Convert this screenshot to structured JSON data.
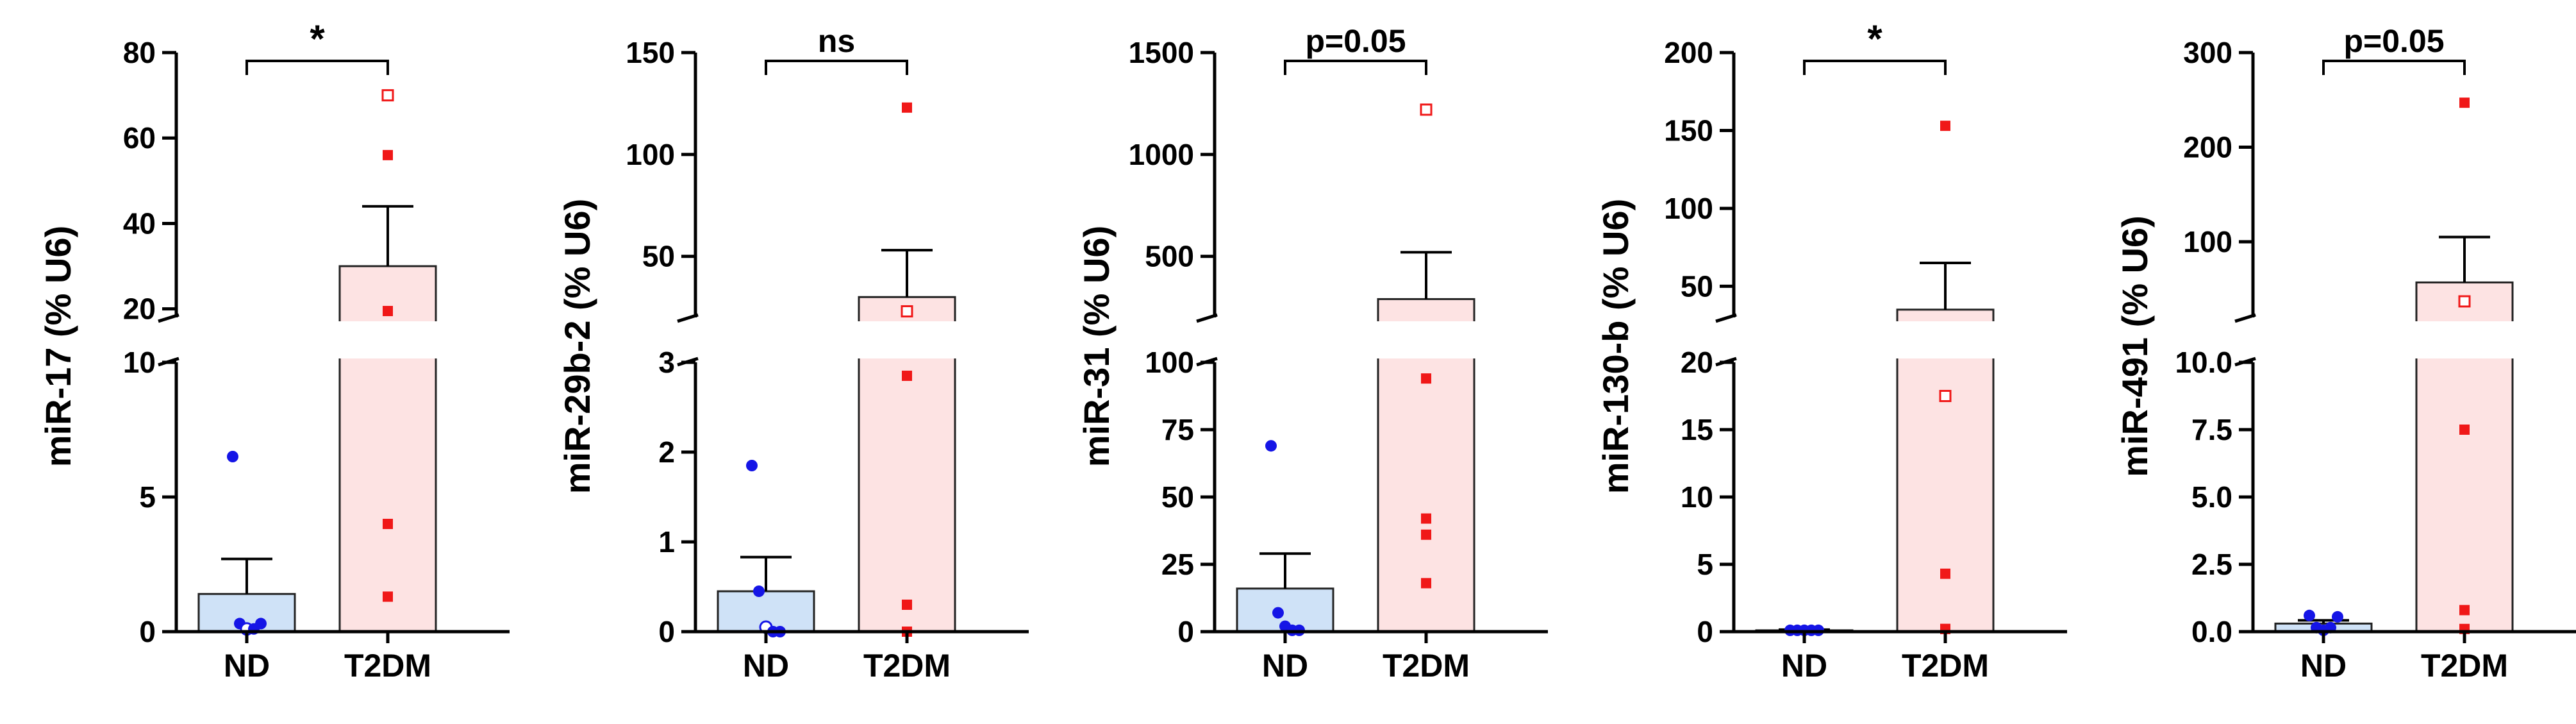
{
  "colors": {
    "nd_bar_fill": "#cfe2f7",
    "nd_point": "#1515e6",
    "t2dm_bar_fill": "#fde3e3",
    "t2dm_point": "#f01818",
    "axis": "#000000"
  },
  "chart_data": [
    {
      "type": "bar",
      "title": "",
      "ylabel": "miR-17 (% U6)",
      "categories": [
        "ND",
        "T2DM"
      ],
      "significance": "*",
      "y_axis_break": {
        "lower": {
          "ylim": [
            0,
            10
          ],
          "ticks": [
            0,
            5,
            10
          ],
          "tick_labels": [
            "0",
            "5",
            "10"
          ]
        },
        "upper": {
          "ylim": [
            18,
            80
          ],
          "ticks": [
            20,
            40,
            60,
            80
          ],
          "tick_labels": [
            "20",
            "40",
            "60",
            "80"
          ]
        }
      },
      "series": [
        {
          "name": "ND",
          "mean": 1.4,
          "sem": 1.3,
          "points": [
            {
              "value": 6.5,
              "open": false
            },
            {
              "value": 0.3,
              "open": false
            },
            {
              "value": 0.1,
              "open": true
            },
            {
              "value": 0.1,
              "open": false
            },
            {
              "value": 0.3,
              "open": false
            }
          ]
        },
        {
          "name": "T2DM",
          "mean": 30,
          "sem": 14,
          "points": [
            {
              "value": 70,
              "open": true
            },
            {
              "value": 56,
              "open": false
            },
            {
              "value": 19.5,
              "open": false
            },
            {
              "value": 4,
              "open": false
            },
            {
              "value": 1.3,
              "open": false
            }
          ]
        }
      ]
    },
    {
      "type": "bar",
      "title": "",
      "ylabel": "miR-29b-2 (% U6)",
      "categories": [
        "ND",
        "T2DM"
      ],
      "significance": "ns",
      "y_axis_break": {
        "lower": {
          "ylim": [
            0,
            3
          ],
          "ticks": [
            0,
            1,
            2,
            3
          ],
          "tick_labels": [
            "0",
            "1",
            "2",
            "3"
          ]
        },
        "upper": {
          "ylim": [
            20,
            150
          ],
          "ticks": [
            50,
            100,
            150
          ],
          "tick_labels": [
            "50",
            "100",
            "150"
          ]
        }
      },
      "series": [
        {
          "name": "ND",
          "mean": 0.45,
          "sem": 0.38,
          "points": [
            {
              "value": 1.85,
              "open": false
            },
            {
              "value": 0.45,
              "open": false
            },
            {
              "value": 0.05,
              "open": true
            },
            {
              "value": 0.0,
              "open": false
            },
            {
              "value": 0.0,
              "open": false
            }
          ]
        },
        {
          "name": "T2DM",
          "mean": 30,
          "sem": 23,
          "points": [
            {
              "value": 123,
              "open": false
            },
            {
              "value": 23,
              "open": true
            },
            {
              "value": 2.85,
              "open": false
            },
            {
              "value": 0.3,
              "open": false
            },
            {
              "value": 0.0,
              "open": false
            }
          ]
        }
      ]
    },
    {
      "type": "bar",
      "title": "",
      "ylabel": "miR-31 (% U6)",
      "categories": [
        "ND",
        "T2DM"
      ],
      "significance": "p=0.05",
      "y_axis_break": {
        "lower": {
          "ylim": [
            0,
            100
          ],
          "ticks": [
            0,
            25,
            50,
            75,
            100
          ],
          "tick_labels": [
            "0",
            "25",
            "50",
            "75",
            "100"
          ]
        },
        "upper": {
          "ylim": [
            200,
            1500
          ],
          "ticks": [
            500,
            1000,
            1500
          ],
          "tick_labels": [
            "500",
            "1000",
            "1500"
          ]
        }
      },
      "series": [
        {
          "name": "ND",
          "mean": 16,
          "sem": 13,
          "points": [
            {
              "value": 69,
              "open": false
            },
            {
              "value": 7,
              "open": false
            },
            {
              "value": 2,
              "open": false
            },
            {
              "value": 0.5,
              "open": false
            },
            {
              "value": 0.5,
              "open": false
            }
          ]
        },
        {
          "name": "T2DM",
          "mean": 290,
          "sem": 230,
          "points": [
            {
              "value": 1220,
              "open": true
            },
            {
              "value": 94,
              "open": false
            },
            {
              "value": 42,
              "open": false
            },
            {
              "value": 36,
              "open": false
            },
            {
              "value": 18,
              "open": false
            }
          ]
        }
      ]
    },
    {
      "type": "bar",
      "title": "",
      "ylabel": "miR-130-b (% U6)",
      "categories": [
        "ND",
        "T2DM"
      ],
      "significance": "*",
      "y_axis_break": {
        "lower": {
          "ylim": [
            0,
            20
          ],
          "ticks": [
            0,
            5,
            10,
            15,
            20
          ],
          "tick_labels": [
            "0",
            "5",
            "10",
            "15",
            "20"
          ]
        },
        "upper": {
          "ylim": [
            30,
            200
          ],
          "ticks": [
            50,
            100,
            150,
            200
          ],
          "tick_labels": [
            "50",
            "100",
            "150",
            "200"
          ]
        }
      },
      "series": [
        {
          "name": "ND",
          "mean": 0.1,
          "sem": 0.05,
          "points": [
            {
              "value": 0.1,
              "open": false
            },
            {
              "value": 0.1,
              "open": false
            },
            {
              "value": 0.1,
              "open": false
            },
            {
              "value": 0.1,
              "open": false
            },
            {
              "value": 0.1,
              "open": false
            }
          ]
        },
        {
          "name": "T2DM",
          "mean": 35,
          "sem": 30,
          "points": [
            {
              "value": 153,
              "open": false
            },
            {
              "value": 17.5,
              "open": true
            },
            {
              "value": 4.3,
              "open": false
            },
            {
              "value": 0.2,
              "open": false
            },
            {
              "value": 0.2,
              "open": false
            }
          ]
        }
      ]
    },
    {
      "type": "bar",
      "title": "",
      "ylabel": "miR-491 (% U6)",
      "categories": [
        "ND",
        "T2DM"
      ],
      "significance": "p=0.05",
      "y_axis_break": {
        "lower": {
          "ylim": [
            0,
            10
          ],
          "ticks": [
            0,
            2.5,
            5,
            7.5,
            10
          ],
          "tick_labels": [
            "0.0",
            "2.5",
            "5.0",
            "7.5",
            "10.0"
          ]
        },
        "upper": {
          "ylim": [
            20,
            300
          ],
          "ticks": [
            100,
            200,
            300
          ],
          "tick_labels": [
            "100",
            "200",
            "300"
          ]
        }
      },
      "series": [
        {
          "name": "ND",
          "mean": 0.3,
          "sem": 0.12,
          "points": [
            {
              "value": 0.6,
              "open": false
            },
            {
              "value": 0.15,
              "open": false
            },
            {
              "value": 0.05,
              "open": false
            },
            {
              "value": 0.15,
              "open": false
            },
            {
              "value": 0.55,
              "open": false
            }
          ]
        },
        {
          "name": "T2DM",
          "mean": 57,
          "sem": 48,
          "points": [
            {
              "value": 247,
              "open": false
            },
            {
              "value": 37,
              "open": true
            },
            {
              "value": 7.5,
              "open": false
            },
            {
              "value": 0.8,
              "open": false
            },
            {
              "value": 0.1,
              "open": false
            }
          ]
        }
      ]
    }
  ]
}
